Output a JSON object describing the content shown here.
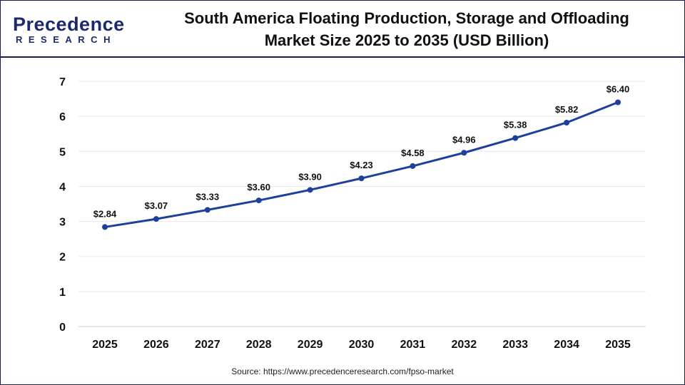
{
  "logo": {
    "line1": "Precedence",
    "line2": "RESEARCH"
  },
  "title": {
    "line1": "South America Floating Production, Storage and Offloading",
    "line2": "Market Size 2025 to 2035 (USD Billion)"
  },
  "source": "Source: https://www.precedenceresearch.com/fpso-market",
  "chart_data": {
    "type": "line",
    "title": "South America Floating Production, Storage and Offloading Market Size 2025 to 2035 (USD Billion)",
    "categories": [
      "2025",
      "2026",
      "2027",
      "2028",
      "2029",
      "2030",
      "2031",
      "2032",
      "2033",
      "2034",
      "2035"
    ],
    "values": [
      2.84,
      3.07,
      3.33,
      3.6,
      3.9,
      4.23,
      4.58,
      4.96,
      5.38,
      5.82,
      6.4
    ],
    "data_labels": [
      "$2.84",
      "$3.07",
      "$3.33",
      "$3.60",
      "$3.90",
      "$4.23",
      "$4.58",
      "$4.96",
      "$5.38",
      "$5.82",
      "$6.40"
    ],
    "ylim": [
      0,
      7
    ],
    "yticks": [
      0,
      1,
      2,
      3,
      4,
      5,
      6,
      7
    ],
    "grid": true,
    "line_color": "#1e3f9a"
  }
}
